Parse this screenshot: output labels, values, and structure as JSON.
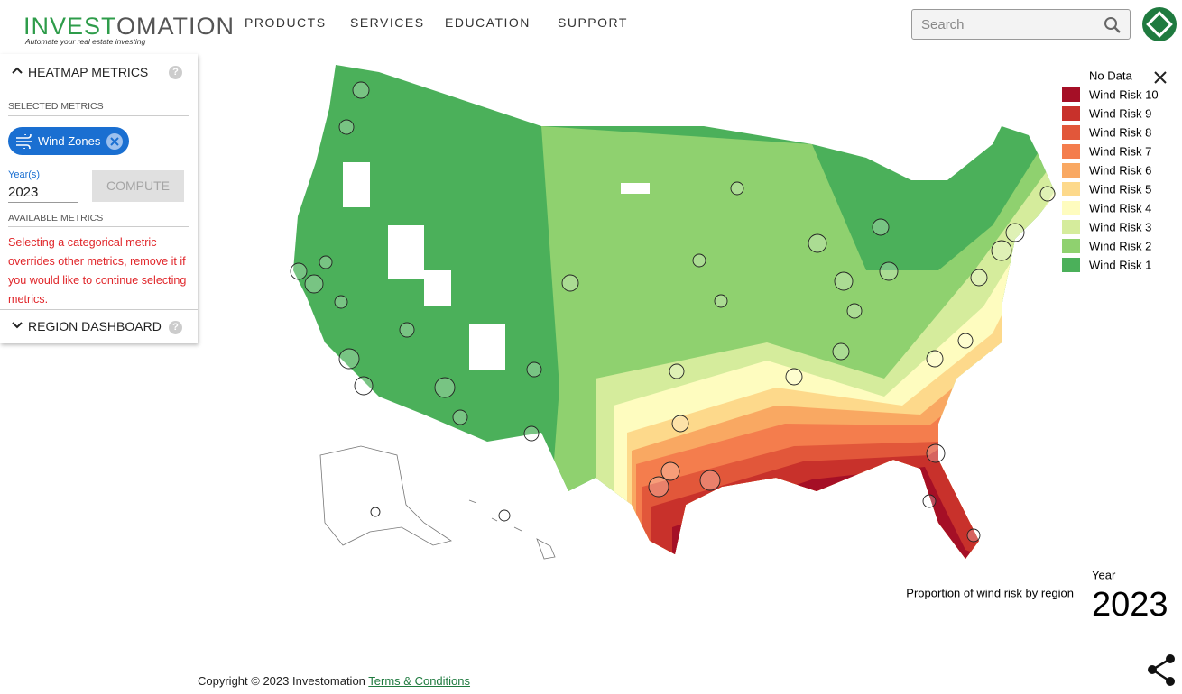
{
  "header": {
    "logo_a": "INVEST",
    "logo_b": "OMATION",
    "tagline": "Automate your real estate investing",
    "nav": [
      "PRODUCTS",
      "SERVICES",
      "EDUCATION",
      "SUPPORT"
    ],
    "search_placeholder": "Search"
  },
  "sidebar": {
    "heatmap_title": "HEATMAP METRICS",
    "selected_label": "SELECTED METRICS",
    "chip": "Wind Zones",
    "year_label": "Year(s)",
    "year_value": "2023",
    "compute": "COMPUTE",
    "available_label": "AVAILABLE METRICS",
    "warning": "Selecting a categorical metric overrides other metrics, remove it if you would like to continue selecting metrics.",
    "region_title": "REGION DASHBOARD"
  },
  "legend": {
    "items": [
      {
        "label": "No Data",
        "color": "#ffffff"
      },
      {
        "label": "Wind Risk 10",
        "color": "#a50f26"
      },
      {
        "label": "Wind Risk 9",
        "color": "#c8312b"
      },
      {
        "label": "Wind Risk 8",
        "color": "#e2573a"
      },
      {
        "label": "Wind Risk 7",
        "color": "#f47d4d"
      },
      {
        "label": "Wind Risk 6",
        "color": "#f9a862"
      },
      {
        "label": "Wind Risk 5",
        "color": "#fdd98b"
      },
      {
        "label": "Wind Risk 4",
        "color": "#fefcbf"
      },
      {
        "label": "Wind Risk 3",
        "color": "#d5ec9c"
      },
      {
        "label": "Wind Risk 2",
        "color": "#8fd16f"
      },
      {
        "label": "Wind Risk 1",
        "color": "#4bb05a"
      }
    ]
  },
  "map_caption": "Proportion of wind risk by region",
  "year_caption": "Year",
  "year_big": "2023",
  "footer": {
    "copyright": "Copyright © 2023 Investomation",
    "terms": "Terms & Conditions"
  }
}
